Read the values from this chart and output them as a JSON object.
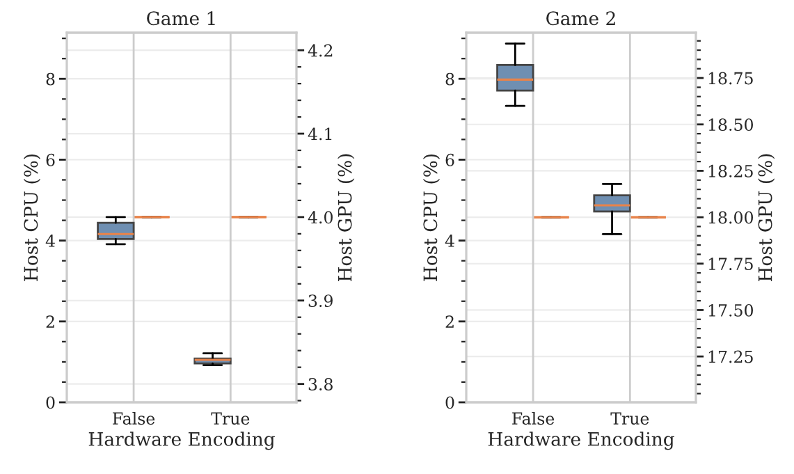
{
  "chart_data": [
    {
      "type": "box",
      "title": "Game 1",
      "xlabel": "Hardware Encoding",
      "ylabel": "Host CPU (%)",
      "y2label": "Host GPU (%)",
      "categories": [
        "False",
        "True"
      ],
      "grid": true,
      "ylim": [
        0,
        9.14
      ],
      "yticks": [
        0,
        {
          "value": 0.5,
          "label": null
        },
        {
          "value": 1,
          "label": null
        },
        {
          "value": 1.5,
          "label": null
        },
        2,
        {
          "value": 2.5,
          "label": null
        },
        {
          "value": 3,
          "label": null
        },
        {
          "value": 3.5,
          "label": null
        },
        4,
        {
          "value": 4.5,
          "label": null
        },
        {
          "value": 5,
          "label": null
        },
        {
          "value": 5.5,
          "label": null
        },
        6,
        {
          "value": 6.5,
          "label": null
        },
        {
          "value": 7,
          "label": null
        },
        {
          "value": 7.5,
          "label": null
        },
        8,
        {
          "value": 8.5,
          "label": null
        },
        {
          "value": 9,
          "label": null
        }
      ],
      "y2lim": [
        3.778,
        4.221
      ],
      "y2ticks": [
        {
          "value": 3.78,
          "label": null
        },
        3.8,
        {
          "value": 3.82,
          "label": null
        },
        {
          "value": 3.84,
          "label": null
        },
        {
          "value": 3.86,
          "label": null
        },
        {
          "value": 3.88,
          "label": null
        },
        3.9,
        {
          "value": 3.92,
          "label": null
        },
        {
          "value": 3.94,
          "label": null
        },
        {
          "value": 3.96,
          "label": null
        },
        {
          "value": 3.98,
          "label": null
        },
        {
          "value": 4.0,
          "label": "4.0"
        },
        {
          "value": 4.02,
          "label": null
        },
        {
          "value": 4.04,
          "label": null
        },
        {
          "value": 4.06,
          "label": null
        },
        {
          "value": 4.08,
          "label": null
        },
        4.1,
        {
          "value": 4.12,
          "label": null
        },
        {
          "value": 4.14,
          "label": null
        },
        {
          "value": 4.16,
          "label": null
        },
        {
          "value": 4.18,
          "label": null
        },
        4.2
      ],
      "series": [
        {
          "color": "#6f8fb2",
          "boxes": [
            {
              "low": 3.91,
              "q1": 4.04,
              "median": 4.16,
              "q3": 4.44,
              "high": 4.58
            },
            {
              "low": 0.92,
              "q1": 0.96,
              "median": 1.05,
              "q3": 1.08,
              "high": 1.21
            }
          ]
        },
        {
          "color": "#e8834a",
          "axis": "y2",
          "boxes": [
            {
              "low": 4.0,
              "q1": 4.0,
              "median": 4.0,
              "q3": 4.0,
              "high": 4.0
            },
            {
              "low": 4.0,
              "q1": 4.0,
              "median": 4.0,
              "q3": 4.0,
              "high": 4.0
            }
          ]
        }
      ]
    },
    {
      "type": "box",
      "title": "Game 2",
      "xlabel": "Hardware Encoding",
      "ylabel": "Host CPU (%)",
      "y2label": "Host GPU (%)",
      "categories": [
        "False",
        "True"
      ],
      "grid": true,
      "ylim": [
        0,
        9.14
      ],
      "yticks": [
        0,
        {
          "value": 0.5,
          "label": null
        },
        {
          "value": 1,
          "label": null
        },
        {
          "value": 1.5,
          "label": null
        },
        2,
        {
          "value": 2.5,
          "label": null
        },
        {
          "value": 3,
          "label": null
        },
        {
          "value": 3.5,
          "label": null
        },
        4,
        {
          "value": 4.5,
          "label": null
        },
        {
          "value": 5,
          "label": null
        },
        {
          "value": 5.5,
          "label": null
        },
        6,
        {
          "value": 6.5,
          "label": null
        },
        {
          "value": 7,
          "label": null
        },
        {
          "value": 7.5,
          "label": null
        },
        8,
        {
          "value": 8.5,
          "label": null
        },
        {
          "value": 9,
          "label": null
        }
      ],
      "y2lim": [
        17.003,
        18.994
      ],
      "y2ticks": [
        {
          "value": 17.05,
          "label": null
        },
        {
          "value": 17.1,
          "label": null
        },
        {
          "value": 17.15,
          "label": null
        },
        {
          "value": 17.2,
          "label": null
        },
        17.25,
        {
          "value": 17.3,
          "label": null
        },
        {
          "value": 17.35,
          "label": null
        },
        {
          "value": 17.4,
          "label": null
        },
        {
          "value": 17.45,
          "label": null
        },
        {
          "value": 17.5,
          "label": "17.50"
        },
        {
          "value": 17.55,
          "label": null
        },
        {
          "value": 17.6,
          "label": null
        },
        {
          "value": 17.65,
          "label": null
        },
        {
          "value": 17.7,
          "label": null
        },
        17.75,
        {
          "value": 17.8,
          "label": null
        },
        {
          "value": 17.85,
          "label": null
        },
        {
          "value": 17.9,
          "label": null
        },
        {
          "value": 17.95,
          "label": null
        },
        {
          "value": 18.0,
          "label": "18.00"
        },
        {
          "value": 18.05,
          "label": null
        },
        {
          "value": 18.1,
          "label": null
        },
        {
          "value": 18.15,
          "label": null
        },
        {
          "value": 18.2,
          "label": null
        },
        18.25,
        {
          "value": 18.3,
          "label": null
        },
        {
          "value": 18.35,
          "label": null
        },
        {
          "value": 18.4,
          "label": null
        },
        {
          "value": 18.45,
          "label": null
        },
        {
          "value": 18.5,
          "label": "18.50"
        },
        {
          "value": 18.55,
          "label": null
        },
        {
          "value": 18.6,
          "label": null
        },
        {
          "value": 18.65,
          "label": null
        },
        {
          "value": 18.7,
          "label": null
        },
        18.75,
        {
          "value": 18.8,
          "label": null
        },
        {
          "value": 18.85,
          "label": null
        },
        {
          "value": 18.9,
          "label": null
        },
        {
          "value": 18.95,
          "label": null
        }
      ],
      "series": [
        {
          "color": "#6f8fb2",
          "boxes": [
            {
              "low": 7.33,
              "q1": 7.71,
              "median": 7.98,
              "q3": 8.34,
              "high": 8.87
            },
            {
              "low": 4.16,
              "q1": 4.72,
              "median": 4.87,
              "q3": 5.12,
              "high": 5.4
            }
          ]
        },
        {
          "color": "#e8834a",
          "axis": "y2",
          "boxes": [
            {
              "low": 18.0,
              "q1": 18.0,
              "median": 18.0,
              "q3": 18.0,
              "high": 18.0
            },
            {
              "low": 18.0,
              "q1": 18.0,
              "median": 18.0,
              "q3": 18.0,
              "high": 18.0
            }
          ]
        }
      ]
    }
  ]
}
